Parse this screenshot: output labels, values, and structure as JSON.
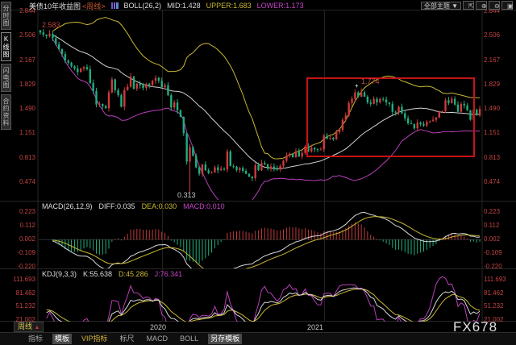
{
  "app": {
    "watermark": "FX678",
    "colors": {
      "up": "#cf3b3b",
      "down": "#1fae7e",
      "boll_upper": "#c9b832",
      "boll_mid": "#d2d2d2",
      "boll_lower": "#bb3fbb",
      "hist_up": "#c23a3a",
      "hist_down": "#1fae7e",
      "macd_diff": "#d8d8d8",
      "macd_dea": "#c9b832",
      "kdj_k": "#d8d8d8",
      "kdj_d": "#c9b832",
      "kdj_j": "#bb3fbb",
      "grid": "#262626",
      "year_grid": "#222222",
      "annotation_box": "#c41414",
      "tick": "#c24242"
    }
  },
  "header": {
    "title": "美债10年收益图",
    "period_tag": "<周线>",
    "boll_label": "BOLL(26,2)",
    "mid": "MID:1.428",
    "upper": "UPPER:1.683",
    "lower": "LOWER:1.173",
    "theme_button": "全部主题 ▼",
    "tool_buttons": [
      {
        "name": "fullscreen-button",
        "glyph": "⇱"
      },
      {
        "name": "zoom-in-button",
        "glyph": "⊕"
      },
      {
        "name": "zoom-out-button",
        "glyph": "⊖"
      },
      {
        "name": "save-chart-button",
        "glyph": "▣"
      }
    ]
  },
  "sidebar": {
    "tabs": [
      {
        "label": "分时图",
        "active": false
      },
      {
        "label": "K线图",
        "active": true
      },
      {
        "label": "闪电图",
        "active": false
      },
      {
        "label": "合约资料",
        "active": false
      }
    ]
  },
  "main_axis": {
    "ticks": [
      "2.844",
      "2.506",
      "2.167",
      "1.829",
      "1.490",
      "1.151",
      "0.813",
      "0.474"
    ]
  },
  "annotations": {
    "start_high": "2.583",
    "peak": "1.774",
    "low": "0.313",
    "cross": "+"
  },
  "macd_panel": {
    "label": "MACD(26,12,9)",
    "diff": "DIFF:0.035",
    "dea": "DEA:0.030",
    "macd": "MACD:0.010",
    "ticks": [
      "0.223",
      "0.112",
      "0.002",
      "-0.109",
      "-0.220"
    ]
  },
  "kdj_panel": {
    "label": "KDJ(9,3,3)",
    "k": "K:55.638",
    "d": "D:45.286",
    "j": "J:76.341",
    "ticks": [
      "111.693",
      "81.462",
      "51.232",
      "21.002"
    ]
  },
  "timeline": {
    "period_label": "周线",
    "period_caret": "▲",
    "dates": [
      "2020",
      "2021"
    ]
  },
  "toolbar": {
    "tabs": [
      {
        "label": "指标",
        "active": false,
        "vip": false
      },
      {
        "label": "模板",
        "active": true,
        "vip": false
      },
      {
        "label": "VIP指标",
        "active": false,
        "vip": true
      },
      {
        "label": "标尺",
        "active": false,
        "vip": false
      },
      {
        "label": "MACD",
        "active": false,
        "vip": false
      },
      {
        "label": "BOLL",
        "active": false,
        "vip": false
      },
      {
        "label": "另存模板",
        "active": true,
        "vip": false
      }
    ]
  },
  "chart_data": {
    "type": "candlestick",
    "symbol": "美债10年收益图",
    "period": "周线",
    "ylim": [
      0.474,
      2.844
    ],
    "macd_ylim": [
      -0.22,
      0.223
    ],
    "kdj_ylim": [
      21.002,
      111.693
    ],
    "year_start_indices": [
      39,
      91
    ],
    "closes": [
      2.55,
      2.52,
      2.5,
      2.53,
      2.47,
      2.39,
      2.32,
      2.25,
      2.16,
      2.13,
      2.08,
      2.05,
      2.0,
      2.05,
      2.07,
      2.04,
      1.85,
      1.74,
      1.55,
      1.56,
      1.53,
      1.5,
      1.72,
      1.9,
      1.75,
      1.68,
      1.52,
      1.75,
      1.8,
      1.94,
      1.77,
      1.84,
      1.82,
      1.78,
      1.84,
      1.82,
      1.88,
      1.92,
      1.88,
      1.79,
      1.82,
      1.68,
      1.51,
      1.58,
      1.47,
      1.38,
      1.15,
      0.76,
      0.96,
      0.84,
      0.68,
      0.59,
      0.72,
      0.64,
      0.6,
      0.61,
      0.68,
      0.64,
      0.66,
      0.65,
      0.9,
      0.7,
      0.69,
      0.64,
      0.67,
      0.63,
      0.59,
      0.55,
      0.53,
      0.71,
      0.64,
      0.74,
      0.72,
      0.66,
      0.69,
      0.66,
      0.65,
      0.7,
      0.77,
      0.84,
      0.87,
      0.82,
      0.9,
      0.83,
      0.88,
      0.97,
      0.9,
      0.95,
      0.93,
      0.92,
      0.93,
      1.12,
      1.08,
      1.09,
      1.07,
      1.17,
      1.2,
      1.34,
      1.4,
      1.57,
      1.63,
      1.72,
      1.66,
      1.72,
      1.66,
      1.58,
      1.56,
      1.63,
      1.58,
      1.63,
      1.62,
      1.58,
      1.56,
      1.45,
      1.44,
      1.52,
      1.43,
      1.36,
      1.29,
      1.28,
      1.22,
      1.3,
      1.28,
      1.26,
      1.31,
      1.32,
      1.34,
      1.37,
      1.45,
      1.46,
      1.61,
      1.57,
      1.63,
      1.55,
      1.45,
      1.56,
      1.54,
      1.47,
      1.34,
      1.48,
      1.4,
      1.49
    ],
    "overrides": {
      "3": {
        "high": 2.583
      },
      "48": {
        "low": 0.313
      },
      "103": {
        "high": 1.774
      }
    },
    "indicators": {
      "boll": {
        "period": 26,
        "mult": 2
      },
      "macd": {
        "fast": 12,
        "slow": 26,
        "signal": 9
      },
      "kdj": {
        "n": 9,
        "k": 3,
        "d": 3
      }
    }
  }
}
